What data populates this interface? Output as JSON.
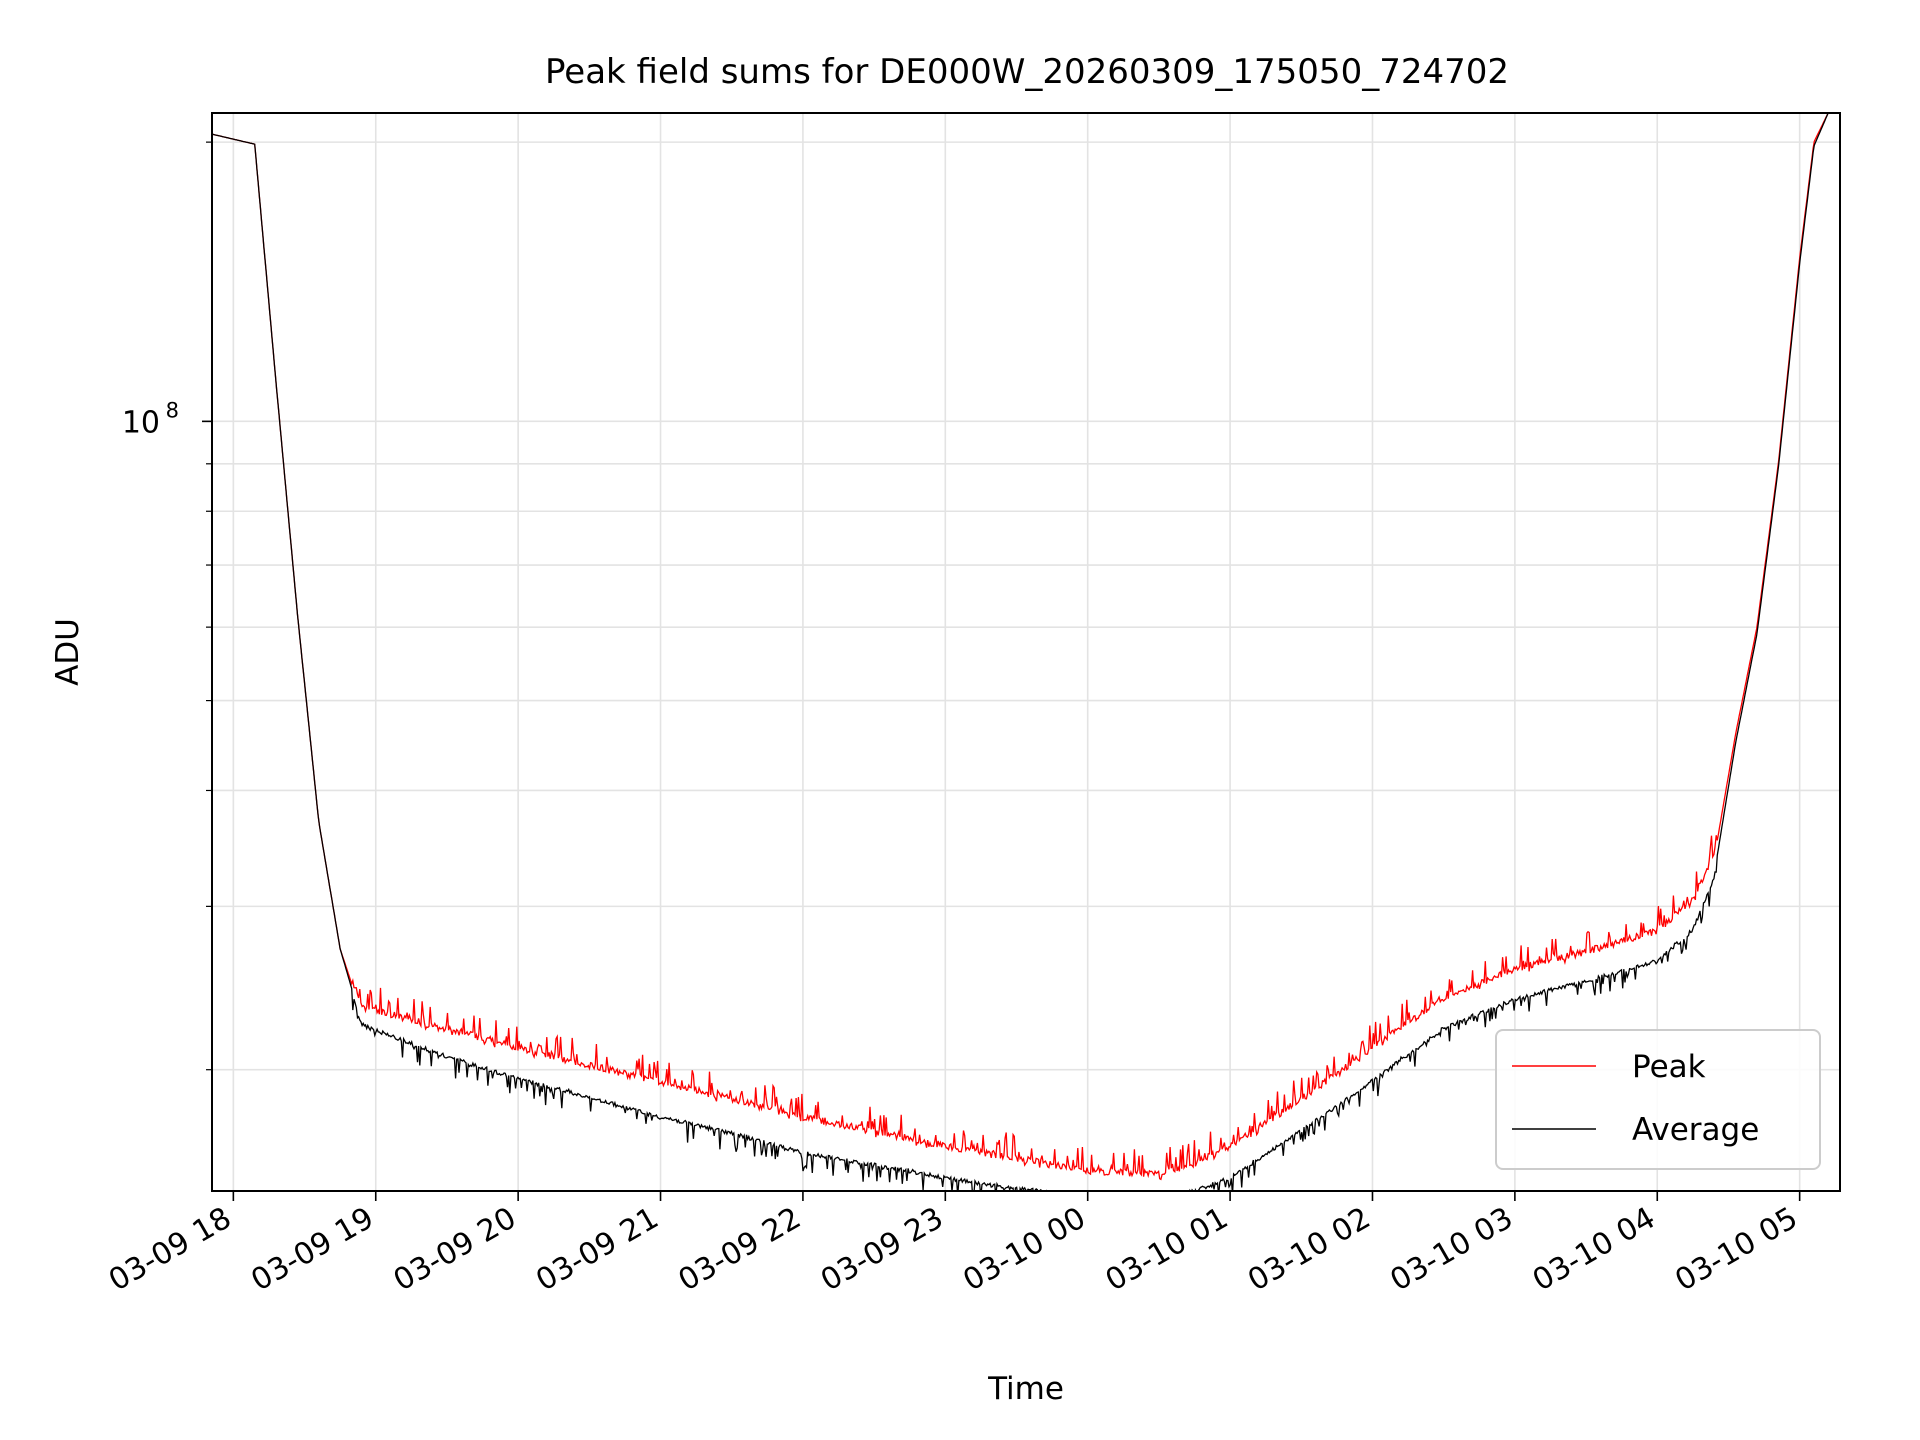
{
  "chart_data": {
    "type": "line",
    "title": "Peak field sums for DE000W_20260309_175050_724702",
    "xlabel": "Time",
    "ylabel": "ADU",
    "x_scale": "time",
    "y_scale": "log",
    "xlim": [
      "2026-03-09 17:51",
      "2026-03-10 05:17"
    ],
    "ylim": [
      14800000,
      215000000
    ],
    "x_ticks": [
      {
        "value": "2026-03-09 18:00",
        "label": "03-09 18"
      },
      {
        "value": "2026-03-09 19:00",
        "label": "03-09 19"
      },
      {
        "value": "2026-03-09 20:00",
        "label": "03-09 20"
      },
      {
        "value": "2026-03-09 21:00",
        "label": "03-09 21"
      },
      {
        "value": "2026-03-09 22:00",
        "label": "03-09 22"
      },
      {
        "value": "2026-03-09 23:00",
        "label": "03-09 23"
      },
      {
        "value": "2026-03-10 00:00",
        "label": "03-10 00"
      },
      {
        "value": "2026-03-10 01:00",
        "label": "03-10 01"
      },
      {
        "value": "2026-03-10 02:00",
        "label": "03-10 02"
      },
      {
        "value": "2026-03-10 03:00",
        "label": "03-10 03"
      },
      {
        "value": "2026-03-10 04:00",
        "label": "03-10 04"
      },
      {
        "value": "2026-03-10 05:00",
        "label": "03-10 05"
      }
    ],
    "y_major_ticks": [
      {
        "value": 100000000,
        "base": "10",
        "exponent": "8"
      }
    ],
    "y_minor_ticks": [
      20000000,
      30000000,
      40000000,
      50000000,
      60000000,
      70000000,
      80000000,
      90000000,
      200000000
    ],
    "grid": true,
    "legend_position": "lower-right",
    "series": [
      {
        "name": "Peak",
        "color": "#ff0000",
        "noise": "spiky",
        "x": [
          "2026-03-09 17:51",
          "2026-03-09 18:09",
          "2026-03-09 18:18",
          "2026-03-09 18:27",
          "2026-03-09 18:36",
          "2026-03-09 18:45",
          "2026-03-09 18:54",
          "2026-03-09 19:30",
          "2026-03-09 20:00",
          "2026-03-09 20:30",
          "2026-03-09 21:00",
          "2026-03-09 21:30",
          "2026-03-09 22:00",
          "2026-03-09 22:30",
          "2026-03-09 23:00",
          "2026-03-09 23:30",
          "2026-03-10 00:00",
          "2026-03-10 00:30",
          "2026-03-10 00:45",
          "2026-03-10 01:00",
          "2026-03-10 01:30",
          "2026-03-10 02:00",
          "2026-03-10 02:30",
          "2026-03-10 03:00",
          "2026-03-10 03:30",
          "2026-03-10 04:00",
          "2026-03-10 04:15",
          "2026-03-10 04:24",
          "2026-03-10 04:33",
          "2026-03-10 04:42",
          "2026-03-10 04:51",
          "2026-03-10 05:00",
          "2026-03-10 05:06",
          "2026-03-10 05:12"
        ],
        "y": [
          204000000,
          199000000,
          110000000,
          62000000,
          37000000,
          27000000,
          23000000,
          21800000,
          20800000,
          19900000,
          19100000,
          18300000,
          17500000,
          16900000,
          16300000,
          15800000,
          15300000,
          15200000,
          15600000,
          16300000,
          18300000,
          20800000,
          23500000,
          25300000,
          26400000,
          27800000,
          30000000,
          33800000,
          46000000,
          60000000,
          90000000,
          150000000,
          200000000,
          215000000
        ]
      },
      {
        "name": "Average",
        "color": "#000000",
        "noise": "dips",
        "x": [
          "2026-03-09 17:51",
          "2026-03-09 18:09",
          "2026-03-09 18:18",
          "2026-03-09 18:27",
          "2026-03-09 18:36",
          "2026-03-09 18:45",
          "2026-03-09 18:54",
          "2026-03-09 19:30",
          "2026-03-09 20:00",
          "2026-03-09 20:30",
          "2026-03-09 21:00",
          "2026-03-09 21:30",
          "2026-03-09 22:00",
          "2026-03-09 22:30",
          "2026-03-09 23:00",
          "2026-03-09 23:30",
          "2026-03-10 00:00",
          "2026-03-10 00:30",
          "2026-03-10 00:45",
          "2026-03-10 01:00",
          "2026-03-10 01:30",
          "2026-03-10 02:00",
          "2026-03-10 02:30",
          "2026-03-10 03:00",
          "2026-03-10 03:30",
          "2026-03-10 04:00",
          "2026-03-10 04:15",
          "2026-03-10 04:24",
          "2026-03-10 04:33",
          "2026-03-10 04:42",
          "2026-03-10 04:51",
          "2026-03-10 05:00",
          "2026-03-10 05:06",
          "2026-03-10 05:12"
        ],
        "y": [
          204000000,
          199000000,
          110000000,
          62000000,
          37000000,
          27000000,
          22500000,
          20800000,
          19700000,
          18800000,
          17900000,
          17200000,
          16400000,
          15900000,
          15400000,
          15000000,
          14700000,
          14600000,
          14900000,
          15400000,
          17300000,
          19600000,
          22300000,
          24000000,
          25100000,
          26400000,
          28500000,
          32500000,
          45000000,
          59000000,
          89000000,
          148000000,
          198000000,
          215000000
        ]
      }
    ]
  }
}
